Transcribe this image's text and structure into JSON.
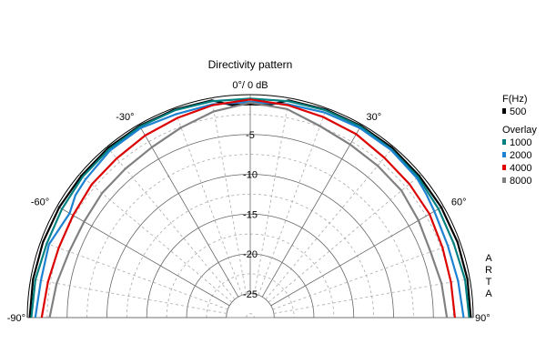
{
  "chart_data": {
    "type": "polar",
    "title": "Directivity pattern",
    "radial_axis": {
      "unit": "dB",
      "top_label": "0°/ 0 dB",
      "tick_labels": [
        "-5",
        "-10",
        "-15",
        "-20",
        "-25"
      ],
      "ticks_db": [
        -5,
        -10,
        -15,
        -20,
        -25
      ],
      "range_db": [
        -28,
        0
      ]
    },
    "angle_axis": {
      "range_deg": [
        -90,
        90
      ],
      "tick_labels": [
        {
          "deg": -90,
          "label": "-90°"
        },
        {
          "deg": -60,
          "label": "-60°"
        },
        {
          "deg": -30,
          "label": "-30°"
        },
        {
          "deg": 30,
          "label": "30°"
        },
        {
          "deg": 60,
          "label": "60°"
        },
        {
          "deg": 90,
          "label": "90°"
        }
      ]
    },
    "grid": true,
    "legend": {
      "position": "right",
      "header": "F(Hz)",
      "overlay_header": "Overlay",
      "entries": [
        {
          "label": "500",
          "color": "#000000"
        },
        {
          "label": "1000",
          "color": "#008080"
        },
        {
          "label": "2000",
          "color": "#1e82d2"
        },
        {
          "label": "4000",
          "color": "#dc0000"
        },
        {
          "label": "8000",
          "color": "#808080"
        }
      ]
    },
    "watermark": "ARTA",
    "series": [
      {
        "name": "500",
        "color": "#000000",
        "angles": [
          -90,
          -80,
          -70,
          -60,
          -50,
          -40,
          -30,
          -20,
          -10,
          -5,
          0,
          5,
          10,
          20,
          30,
          40,
          50,
          60,
          70,
          80,
          90
        ],
        "db": [
          -0.3,
          -0.3,
          -0.3,
          -0.3,
          -0.3,
          -0.2,
          -0.2,
          -0.2,
          -0.3,
          -1.2,
          -1.2,
          -1.2,
          -0.3,
          -0.2,
          -0.2,
          -0.2,
          -0.3,
          -0.3,
          -0.3,
          -0.3,
          -0.3
        ]
      },
      {
        "name": "1000",
        "color": "#008080",
        "angles": [
          -90,
          -80,
          -70,
          -60,
          -50,
          -40,
          -30,
          -20,
          -10,
          0,
          10,
          20,
          30,
          40,
          50,
          60,
          70,
          80,
          90
        ],
        "db": [
          -0.5,
          -0.6,
          -0.8,
          -0.7,
          -0.5,
          -0.4,
          -0.3,
          -0.3,
          -0.4,
          -0.5,
          -0.4,
          -0.3,
          -0.3,
          -0.4,
          -0.5,
          -0.7,
          -0.8,
          -0.6,
          -0.5
        ]
      },
      {
        "name": "2000",
        "color": "#1e82d2",
        "angles": [
          -90,
          -80,
          -70,
          -60,
          -55,
          -50,
          -40,
          -30,
          -20,
          -10,
          0,
          10,
          20,
          30,
          40,
          50,
          55,
          60,
          70,
          80,
          90
        ],
        "db": [
          -1.0,
          -1.3,
          -1.1,
          -1.8,
          -1.2,
          -1.0,
          -0.6,
          -0.5,
          -0.8,
          -0.8,
          -0.9,
          -0.8,
          -0.6,
          -0.5,
          -0.5,
          -0.7,
          -1.0,
          -1.3,
          -1.6,
          -1.5,
          -1.2
        ]
      },
      {
        "name": "4000",
        "color": "#dc0000",
        "angles": [
          -90,
          -80,
          -70,
          -60,
          -50,
          -40,
          -30,
          -20,
          -10,
          0,
          10,
          20,
          30,
          40,
          50,
          60,
          70,
          80,
          90
        ],
        "db": [
          -1.8,
          -2.2,
          -2.4,
          -2.3,
          -2.0,
          -1.9,
          -1.6,
          -1.3,
          -0.9,
          -0.6,
          -0.9,
          -1.2,
          -1.4,
          -1.8,
          -1.9,
          -2.0,
          -2.3,
          -2.4,
          -2.3
        ]
      },
      {
        "name": "8000",
        "color": "#808080",
        "angles": [
          -90,
          -80,
          -70,
          -60,
          -50,
          -40,
          -30,
          -20,
          -10,
          0,
          10,
          20,
          30,
          40,
          50,
          60,
          70,
          80,
          90
        ],
        "db": [
          -2.8,
          -3.3,
          -3.8,
          -3.9,
          -3.7,
          -3.6,
          -3.3,
          -2.6,
          -1.7,
          -1.0,
          -1.4,
          -2.4,
          -2.9,
          -3.1,
          -3.2,
          -3.6,
          -3.9,
          -3.6,
          -3.3
        ]
      }
    ]
  }
}
